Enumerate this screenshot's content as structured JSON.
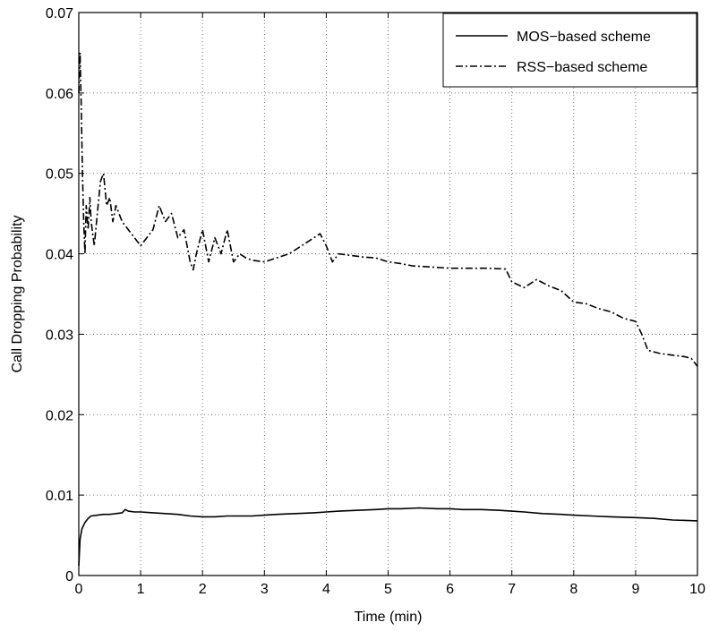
{
  "chart_data": {
    "type": "line",
    "title": "",
    "xlabel": "Time (min)",
    "ylabel": "Call Dropping Probability",
    "xlim": [
      0,
      10
    ],
    "ylim": [
      0,
      0.07
    ],
    "xticks": [
      "0",
      "1",
      "2",
      "3",
      "4",
      "5",
      "6",
      "7",
      "8",
      "9",
      "10"
    ],
    "yticks": [
      "0",
      "0.01",
      "0.02",
      "0.03",
      "0.04",
      "0.05",
      "0.06",
      "0.07"
    ],
    "grid": true,
    "legend_position": "top-right",
    "series": [
      {
        "name": "MOS−based scheme",
        "line_style": "solid",
        "x": [
          0,
          0.02,
          0.05,
          0.1,
          0.15,
          0.2,
          0.3,
          0.4,
          0.5,
          0.6,
          0.7,
          0.75,
          0.8,
          0.9,
          1.0,
          1.2,
          1.4,
          1.6,
          1.8,
          2.0,
          2.2,
          2.4,
          2.6,
          2.8,
          3.0,
          3.2,
          3.5,
          3.8,
          4.0,
          4.2,
          4.5,
          4.8,
          5.0,
          5.2,
          5.5,
          5.8,
          6.0,
          6.2,
          6.5,
          6.8,
          7.0,
          7.2,
          7.5,
          7.8,
          8.0,
          8.3,
          8.6,
          9.0,
          9.3,
          9.6,
          10.0
        ],
        "values": [
          0.0012,
          0.0045,
          0.0058,
          0.0066,
          0.0071,
          0.0074,
          0.0075,
          0.0076,
          0.0076,
          0.0077,
          0.0078,
          0.0082,
          0.008,
          0.0079,
          0.0079,
          0.0078,
          0.0077,
          0.0076,
          0.0074,
          0.0073,
          0.0073,
          0.0074,
          0.0074,
          0.0074,
          0.0075,
          0.0076,
          0.0077,
          0.0078,
          0.0079,
          0.008,
          0.0081,
          0.0082,
          0.0083,
          0.0083,
          0.0084,
          0.0083,
          0.0083,
          0.0082,
          0.0082,
          0.0081,
          0.008,
          0.0079,
          0.0077,
          0.0076,
          0.0075,
          0.0074,
          0.0073,
          0.0072,
          0.0071,
          0.0069,
          0.0068
        ]
      },
      {
        "name": "RSS−based scheme",
        "line_style": "dashdot",
        "x": [
          0,
          0.02,
          0.04,
          0.06,
          0.08,
          0.1,
          0.12,
          0.15,
          0.18,
          0.2,
          0.25,
          0.3,
          0.35,
          0.4,
          0.45,
          0.5,
          0.55,
          0.6,
          0.7,
          0.8,
          0.9,
          1.0,
          1.1,
          1.2,
          1.3,
          1.4,
          1.5,
          1.6,
          1.7,
          1.8,
          1.85,
          1.9,
          2.0,
          2.1,
          2.2,
          2.3,
          2.4,
          2.5,
          2.6,
          2.7,
          2.8,
          3.0,
          3.2,
          3.4,
          3.6,
          3.8,
          3.9,
          4.0,
          4.1,
          4.2,
          4.4,
          4.6,
          4.8,
          5.0,
          5.2,
          5.4,
          5.6,
          5.8,
          6.0,
          6.3,
          6.6,
          6.9,
          7.0,
          7.2,
          7.4,
          7.6,
          7.8,
          8.0,
          8.2,
          8.4,
          8.6,
          8.8,
          9.0,
          9.1,
          9.2,
          9.4,
          9.6,
          9.8,
          9.9,
          10.0
        ],
        "values": [
          0.06,
          0.065,
          0.058,
          0.05,
          0.044,
          0.04,
          0.046,
          0.043,
          0.047,
          0.044,
          0.041,
          0.045,
          0.049,
          0.05,
          0.046,
          0.047,
          0.044,
          0.046,
          0.044,
          0.043,
          0.042,
          0.041,
          0.042,
          0.043,
          0.046,
          0.044,
          0.045,
          0.042,
          0.043,
          0.039,
          0.038,
          0.04,
          0.043,
          0.039,
          0.042,
          0.04,
          0.043,
          0.039,
          0.04,
          0.0395,
          0.0392,
          0.039,
          0.0395,
          0.04,
          0.041,
          0.042,
          0.0425,
          0.041,
          0.039,
          0.04,
          0.0398,
          0.0396,
          0.0395,
          0.039,
          0.0388,
          0.0385,
          0.0384,
          0.0383,
          0.0382,
          0.0382,
          0.0382,
          0.0381,
          0.0365,
          0.0358,
          0.0368,
          0.036,
          0.0354,
          0.034,
          0.0338,
          0.0332,
          0.0328,
          0.032,
          0.0316,
          0.03,
          0.028,
          0.0276,
          0.0274,
          0.0272,
          0.027,
          0.026
        ]
      }
    ]
  }
}
